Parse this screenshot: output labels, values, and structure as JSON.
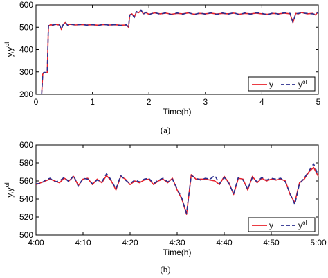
{
  "chart_data": [
    {
      "type": "line",
      "caption": "(a)",
      "xlabel": "Time(h)",
      "ylabel": "y,y",
      "ylabel_sup": "ol",
      "xlim": [
        0,
        5
      ],
      "ylim": [
        200,
        600
      ],
      "xticks": [
        "0",
        "1",
        "2",
        "3",
        "4",
        "5"
      ],
      "yticks": [
        "200",
        "300",
        "400",
        "500",
        "600"
      ],
      "grid": false,
      "legend": "bottom-right",
      "series": [
        {
          "name": "y",
          "color": "#e8202a",
          "style": "solid",
          "x": [
            0.1,
            0.12,
            0.14,
            0.2,
            0.22,
            0.26,
            0.3,
            0.34,
            0.38,
            0.42,
            0.45,
            0.48,
            0.52,
            0.56,
            0.6,
            0.7,
            0.8,
            0.9,
            1.0,
            1.1,
            1.2,
            1.3,
            1.4,
            1.5,
            1.6,
            1.64,
            1.66,
            1.7,
            1.74,
            1.78,
            1.82,
            1.86,
            1.9,
            1.95,
            2.0,
            2.1,
            2.2,
            2.3,
            2.4,
            2.5,
            2.6,
            2.7,
            2.8,
            2.9,
            3.0,
            3.1,
            3.2,
            3.3,
            3.4,
            3.5,
            3.6,
            3.7,
            3.8,
            3.9,
            4.0,
            4.1,
            4.2,
            4.3,
            4.4,
            4.5,
            4.55,
            4.6,
            4.65,
            4.7,
            4.8,
            4.9,
            4.95,
            5.0
          ],
          "values": [
            200,
            290,
            296,
            296,
            505,
            512,
            508,
            514,
            511,
            510,
            490,
            512,
            521,
            510,
            513,
            510,
            512,
            510,
            511,
            509,
            512,
            510,
            511,
            509,
            510,
            500,
            555,
            560,
            545,
            568,
            565,
            575,
            560,
            565,
            558,
            564,
            560,
            563,
            558,
            562,
            560,
            564,
            558,
            562,
            560,
            563,
            559,
            562,
            560,
            563,
            558,
            562,
            560,
            563,
            560,
            558,
            562,
            560,
            563,
            560,
            520,
            562,
            560,
            566,
            560,
            562,
            555,
            570
          ]
        },
        {
          "name": "y",
          "name_sup": "ol",
          "color": "#2b2f8f",
          "style": "dashed",
          "x": [
            0.1,
            0.12,
            0.14,
            0.2,
            0.22,
            0.26,
            0.3,
            0.34,
            0.38,
            0.42,
            0.45,
            0.48,
            0.52,
            0.56,
            0.6,
            0.7,
            0.8,
            0.9,
            1.0,
            1.1,
            1.2,
            1.3,
            1.4,
            1.5,
            1.6,
            1.64,
            1.66,
            1.7,
            1.74,
            1.78,
            1.82,
            1.86,
            1.9,
            1.95,
            2.0,
            2.1,
            2.2,
            2.3,
            2.4,
            2.5,
            2.6,
            2.7,
            2.8,
            2.9,
            3.0,
            3.1,
            3.2,
            3.3,
            3.4,
            3.5,
            3.6,
            3.7,
            3.8,
            3.9,
            4.0,
            4.1,
            4.2,
            4.3,
            4.4,
            4.5,
            4.55,
            4.6,
            4.65,
            4.7,
            4.8,
            4.9,
            4.95,
            5.0
          ],
          "values": [
            200,
            292,
            298,
            297,
            507,
            510,
            510,
            512,
            513,
            509,
            492,
            510,
            523,
            508,
            515,
            509,
            513,
            509,
            512,
            508,
            513,
            509,
            512,
            508,
            511,
            502,
            553,
            562,
            543,
            570,
            563,
            577,
            558,
            567,
            556,
            566,
            558,
            565,
            556,
            564,
            558,
            566,
            556,
            564,
            558,
            565,
            557,
            564,
            558,
            565,
            556,
            564,
            558,
            565,
            562,
            556,
            564,
            558,
            565,
            562,
            522,
            560,
            562,
            564,
            562,
            560,
            557,
            568
          ]
        }
      ]
    },
    {
      "type": "line",
      "caption": "(b)",
      "xlabel": "Time(h)",
      "ylabel": "y,y",
      "ylabel_sup": "ol",
      "xlim": [
        0,
        60
      ],
      "ylim": [
        500,
        600
      ],
      "xticks": [
        "4:00",
        "4:10",
        "4:20",
        "4:30",
        "4:40",
        "4:50",
        "5:00"
      ],
      "yticks": [
        "500",
        "520",
        "540",
        "560",
        "580",
        "600"
      ],
      "grid": false,
      "legend": "bottom-right",
      "series": [
        {
          "name": "y",
          "color": "#e8202a",
          "style": "solid",
          "x": [
            0,
            1,
            2,
            3,
            4,
            5,
            6,
            7,
            8,
            9,
            10,
            11,
            12,
            13,
            14,
            15,
            16,
            17,
            18,
            19,
            20,
            21,
            22,
            23,
            24,
            25,
            26,
            27,
            28,
            29,
            30,
            31,
            32,
            33,
            34,
            35,
            36,
            37,
            38,
            39,
            40,
            41,
            42,
            43,
            44,
            45,
            46,
            47,
            48,
            49,
            50,
            51,
            52,
            53,
            54,
            55,
            56,
            57,
            58,
            59,
            60
          ],
          "values": [
            556,
            558,
            560,
            562,
            560,
            558,
            563,
            560,
            565,
            555,
            562,
            563,
            556,
            562,
            558,
            566,
            560,
            550,
            565,
            562,
            556,
            560,
            558,
            561,
            562,
            556,
            560,
            562,
            558,
            563,
            550,
            540,
            523,
            567,
            562,
            562,
            562,
            561,
            560,
            556,
            565,
            558,
            545,
            563,
            562,
            550,
            565,
            558,
            563,
            560,
            562,
            561,
            562,
            560,
            545,
            536,
            558,
            562,
            570,
            575,
            565
          ]
        },
        {
          "name": "y",
          "name_sup": "ol",
          "color": "#2b2f8f",
          "style": "dashed",
          "x": [
            0,
            1,
            2,
            3,
            4,
            5,
            6,
            7,
            8,
            9,
            10,
            11,
            12,
            13,
            14,
            15,
            16,
            17,
            18,
            19,
            20,
            21,
            22,
            23,
            24,
            25,
            26,
            27,
            28,
            29,
            30,
            31,
            32,
            33,
            34,
            35,
            36,
            37,
            38,
            39,
            40,
            41,
            42,
            43,
            44,
            45,
            46,
            47,
            48,
            49,
            50,
            51,
            52,
            53,
            54,
            55,
            56,
            57,
            58,
            59,
            60
          ],
          "values": [
            557,
            557,
            561,
            563,
            559,
            560,
            564,
            559,
            566,
            554,
            563,
            562,
            557,
            561,
            559,
            568,
            561,
            551,
            566,
            561,
            557,
            561,
            559,
            562,
            563,
            557,
            561,
            563,
            559,
            562,
            551,
            541,
            524,
            566,
            563,
            561,
            563,
            562,
            566,
            557,
            564,
            557,
            546,
            564,
            561,
            551,
            564,
            559,
            564,
            561,
            563,
            562,
            563,
            559,
            546,
            534,
            557,
            563,
            571,
            579,
            566
          ]
        }
      ]
    }
  ]
}
